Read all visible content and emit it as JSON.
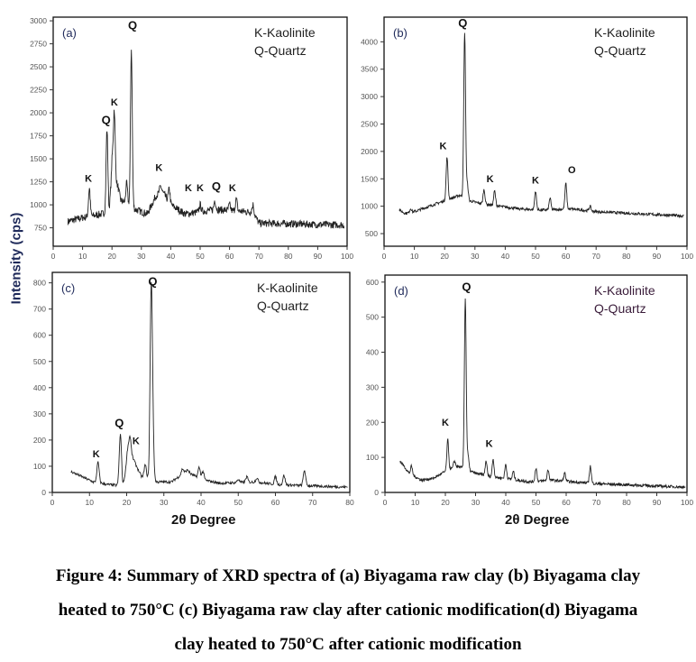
{
  "y_axis_label": "Intensity (cps)",
  "x_axis_label": "2θ Degree",
  "caption": [
    "Figure 4: Summary of XRD spectra of (a) Biyagama raw clay (b) Biyagama clay",
    "heated to 750°C (c) Biyagama raw clay after cationic modification(d) Biyagama",
    "clay heated to 750°C after cationic modification"
  ],
  "chart_data": [
    {
      "type": "line",
      "panel_label": "(a)",
      "legend": [
        "K-Kaolinite",
        "Q-Quartz"
      ],
      "xlim": [
        0,
        100
      ],
      "ylim": [
        550,
        3040
      ],
      "xticks": [
        0,
        10,
        20,
        30,
        40,
        50,
        60,
        70,
        80,
        90,
        100
      ],
      "yticks": [
        750,
        1000,
        1250,
        1500,
        1750,
        2000,
        2250,
        2500,
        2750,
        3000
      ],
      "x_range": [
        5,
        99
      ],
      "baseline": [
        [
          5,
          820
        ],
        [
          10,
          860
        ],
        [
          15,
          890
        ],
        [
          19,
          920
        ],
        [
          20,
          1350
        ],
        [
          22,
          1200
        ],
        [
          23,
          1050
        ],
        [
          28,
          950
        ],
        [
          32,
          900
        ],
        [
          35,
          1100
        ],
        [
          37,
          1150
        ],
        [
          40,
          1000
        ],
        [
          45,
          900
        ],
        [
          55,
          950
        ],
        [
          68,
          920
        ],
        [
          70,
          800
        ],
        [
          100,
          780
        ]
      ],
      "peaks": [
        [
          12.3,
          1180
        ],
        [
          18.3,
          1820
        ],
        [
          20.8,
          2010
        ],
        [
          20.2,
          1500
        ],
        [
          25,
          1230
        ],
        [
          26.6,
          2690
        ],
        [
          36.5,
          1200
        ],
        [
          39.5,
          1170
        ],
        [
          50,
          1000
        ],
        [
          55,
          1050
        ],
        [
          60,
          1000
        ],
        [
          62.3,
          1060
        ],
        [
          68,
          1000
        ]
      ],
      "noise": 40,
      "annotations": [
        {
          "text": "K",
          "x": 12,
          "y": 1250
        },
        {
          "text": "Q",
          "x": 18,
          "y": 1880
        },
        {
          "text": "K",
          "x": 20.8,
          "y": 2080
        },
        {
          "text": "Q",
          "x": 27,
          "y": 2910
        },
        {
          "text": "K",
          "x": 36,
          "y": 1370
        },
        {
          "text": "K",
          "x": 46,
          "y": 1150
        },
        {
          "text": "K",
          "x": 50,
          "y": 1150
        },
        {
          "text": "Q",
          "x": 55.5,
          "y": 1160
        },
        {
          "text": "K",
          "x": 61,
          "y": 1150
        }
      ]
    },
    {
      "type": "line",
      "panel_label": "(b)",
      "legend": [
        "K-Kaolinite",
        "Q-Quartz"
      ],
      "xlim": [
        0,
        100
      ],
      "ylim": [
        270,
        4450
      ],
      "xticks": [
        0,
        10,
        20,
        30,
        40,
        50,
        60,
        70,
        80,
        90,
        100
      ],
      "yticks": [
        500,
        1000,
        1500,
        2000,
        2500,
        3000,
        3500,
        4000
      ],
      "x_range": [
        5,
        99
      ],
      "baseline": [
        [
          5,
          930
        ],
        [
          7,
          870
        ],
        [
          10,
          900
        ],
        [
          15,
          1000
        ],
        [
          20,
          1100
        ],
        [
          25,
          1200
        ],
        [
          28,
          1100
        ],
        [
          32,
          1050
        ],
        [
          38,
          1000
        ],
        [
          45,
          950
        ],
        [
          52,
          930
        ],
        [
          62,
          950
        ],
        [
          70,
          900
        ],
        [
          100,
          820
        ]
      ],
      "peaks": [
        [
          8.8,
          960
        ],
        [
          20.8,
          1900
        ],
        [
          26.6,
          4180
        ],
        [
          27.5,
          1400
        ],
        [
          33,
          1300
        ],
        [
          36.5,
          1280
        ],
        [
          50,
          1280
        ],
        [
          54.8,
          1150
        ],
        [
          60,
          1420
        ],
        [
          68,
          1000
        ]
      ],
      "noise": 25,
      "annotations": [
        {
          "text": "K",
          "x": 19.5,
          "y": 2040
        },
        {
          "text": "Q",
          "x": 26,
          "y": 4270
        },
        {
          "text": "K",
          "x": 35,
          "y": 1440
        },
        {
          "text": "K",
          "x": 50,
          "y": 1410
        },
        {
          "text": "O",
          "x": 62,
          "y": 1600
        }
      ]
    },
    {
      "type": "line",
      "panel_label": "(c)",
      "legend": [
        "K-Kaolinite",
        "Q-Quartz"
      ],
      "xlim": [
        0,
        80
      ],
      "ylim": [
        0,
        840
      ],
      "xticks": [
        0,
        10,
        20,
        30,
        40,
        50,
        60,
        70,
        80
      ],
      "yticks": [
        0,
        100,
        200,
        300,
        400,
        500,
        600,
        700,
        800
      ],
      "x_range": [
        5,
        79.5
      ],
      "baseline": [
        [
          5,
          80
        ],
        [
          8,
          60
        ],
        [
          11,
          40
        ],
        [
          15,
          30
        ],
        [
          19,
          25
        ],
        [
          20,
          100
        ],
        [
          22,
          120
        ],
        [
          24,
          60
        ],
        [
          28,
          40
        ],
        [
          32,
          40
        ],
        [
          36,
          80
        ],
        [
          40,
          50
        ],
        [
          45,
          35
        ],
        [
          55,
          40
        ],
        [
          60,
          30
        ],
        [
          80,
          20
        ]
      ],
      "peaks": [
        [
          12.3,
          115
        ],
        [
          18.3,
          222
        ],
        [
          20.3,
          160
        ],
        [
          20.9,
          205
        ],
        [
          21.5,
          130
        ],
        [
          25,
          105
        ],
        [
          26.6,
          745
        ],
        [
          27,
          195
        ],
        [
          35,
          90
        ],
        [
          36.5,
          85
        ],
        [
          39.5,
          95
        ],
        [
          40.5,
          80
        ],
        [
          50,
          50
        ],
        [
          52.3,
          60
        ],
        [
          55,
          55
        ],
        [
          60,
          60
        ],
        [
          62.3,
          65
        ],
        [
          67.8,
          85
        ]
      ],
      "noise": 5,
      "annotations": [
        {
          "text": "K",
          "x": 11.8,
          "y": 135
        },
        {
          "text": "Q",
          "x": 18,
          "y": 250
        },
        {
          "text": "K",
          "x": 22.5,
          "y": 185
        },
        {
          "text": "Q",
          "x": 27,
          "y": 790
        }
      ]
    },
    {
      "type": "line",
      "panel_label": "(d)",
      "legend": [
        "K-Kaolinite",
        "Q-Quartz"
      ],
      "xlim": [
        0,
        100
      ],
      "ylim": [
        0,
        620
      ],
      "xticks": [
        0,
        10,
        20,
        30,
        40,
        50,
        60,
        70,
        80,
        90,
        100
      ],
      "yticks": [
        0,
        100,
        200,
        300,
        400,
        500,
        600
      ],
      "x_range": [
        5,
        99.5
      ],
      "baseline": [
        [
          5,
          90
        ],
        [
          8,
          55
        ],
        [
          12,
          35
        ],
        [
          16,
          40
        ],
        [
          20,
          60
        ],
        [
          24,
          75
        ],
        [
          30,
          55
        ],
        [
          35,
          45
        ],
        [
          40,
          40
        ],
        [
          48,
          30
        ],
        [
          55,
          35
        ],
        [
          70,
          25
        ],
        [
          100,
          15
        ]
      ],
      "peaks": [
        [
          8.8,
          75
        ],
        [
          20.8,
          150
        ],
        [
          23,
          90
        ],
        [
          26.6,
          555
        ],
        [
          27.5,
          105
        ],
        [
          33.5,
          90
        ],
        [
          35.8,
          95
        ],
        [
          40,
          80
        ],
        [
          42.5,
          60
        ],
        [
          50,
          70
        ],
        [
          54,
          65
        ],
        [
          59.5,
          55
        ],
        [
          68,
          75
        ]
      ],
      "noise": 4,
      "annotations": [
        {
          "text": "K",
          "x": 20,
          "y": 190
        },
        {
          "text": "Q",
          "x": 27,
          "y": 575
        },
        {
          "text": "K",
          "x": 34.5,
          "y": 130
        }
      ]
    }
  ]
}
